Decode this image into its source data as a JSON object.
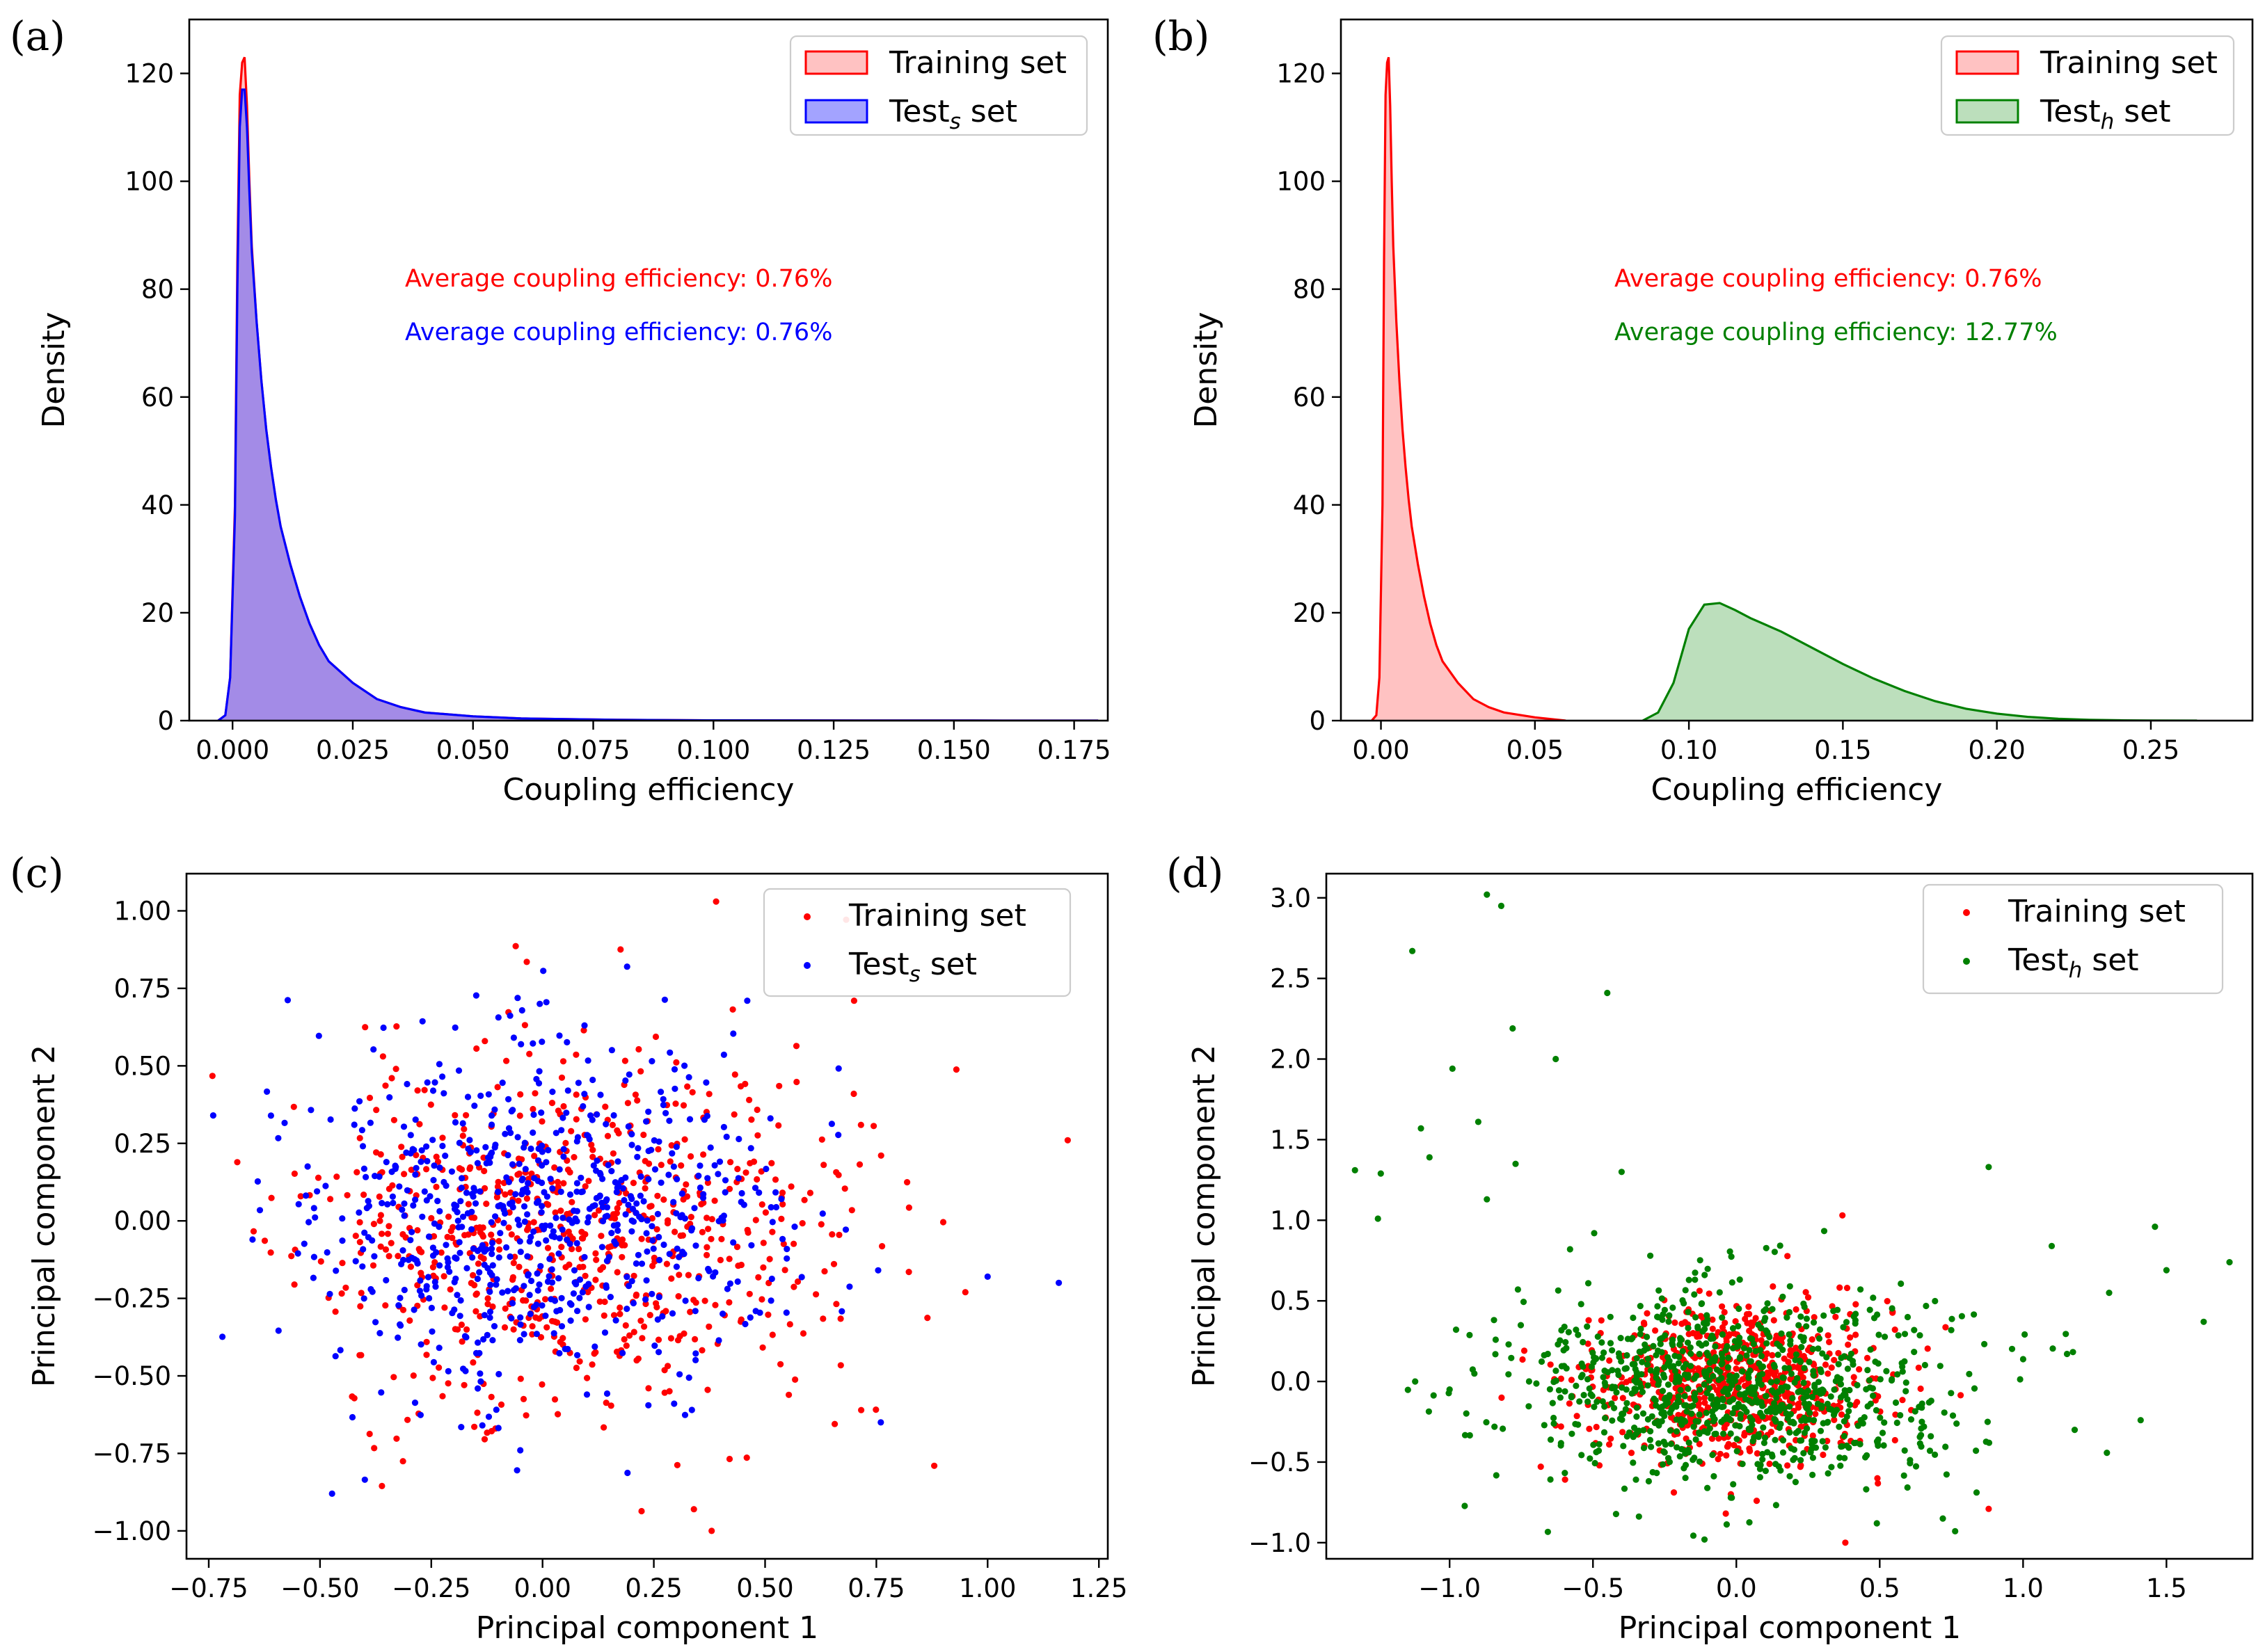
{
  "chart_data": [
    {
      "panel": "(a)",
      "type": "area",
      "xlabel": "Coupling efficiency",
      "ylabel": "Density",
      "xlim": [
        -0.009,
        0.182
      ],
      "ylim": [
        0,
        130
      ],
      "xticks": [
        0.0,
        0.025,
        0.05,
        0.075,
        0.1,
        0.125,
        0.15,
        0.175
      ],
      "xtick_labels": [
        "0.000",
        "0.025",
        "0.050",
        "0.075",
        "0.100",
        "0.125",
        "0.150",
        "0.175"
      ],
      "yticks": [
        0,
        20,
        40,
        60,
        80,
        100,
        120
      ],
      "ytick_labels": [
        "0",
        "20",
        "40",
        "60",
        "80",
        "100",
        "120"
      ],
      "legend_position": "upper-right",
      "series": [
        {
          "name": "Training set",
          "name_sub": "",
          "name_suffix": "",
          "color": "#ff0000",
          "fill": "#ff9999",
          "x": [
            -0.003,
            -0.0015,
            -0.0005,
            0.0005,
            0.001,
            0.0015,
            0.002,
            0.0025,
            0.003,
            0.0035,
            0.004,
            0.005,
            0.006,
            0.007,
            0.008,
            0.009,
            0.01,
            0.012,
            0.014,
            0.016,
            0.018,
            0.02,
            0.025,
            0.03,
            0.035,
            0.04,
            0.05,
            0.06,
            0.08,
            0.1,
            0.13,
            0.16,
            0.18
          ],
          "y": [
            0,
            1,
            8,
            40,
            85,
            116,
            122,
            123,
            114,
            100,
            88,
            74,
            63,
            54,
            47,
            41,
            36,
            29,
            23,
            18,
            14,
            11,
            7,
            4,
            2.5,
            1.5,
            0.8,
            0.4,
            0.15,
            0.05,
            0.02,
            0.01,
            0
          ]
        },
        {
          "name": "Test",
          "name_sub": "s",
          "name_suffix": " set",
          "color": "#0000ff",
          "fill": "#6666ff",
          "x": [
            -0.003,
            -0.0015,
            -0.0005,
            0.0005,
            0.001,
            0.0015,
            0.002,
            0.0025,
            0.003,
            0.0035,
            0.004,
            0.005,
            0.006,
            0.007,
            0.008,
            0.009,
            0.01,
            0.012,
            0.014,
            0.016,
            0.018,
            0.02,
            0.025,
            0.03,
            0.035,
            0.04,
            0.05,
            0.06,
            0.08,
            0.1,
            0.13,
            0.16,
            0.18
          ],
          "y": [
            0,
            1,
            8,
            38,
            80,
            110,
            117,
            117,
            110,
            98,
            87,
            74,
            63,
            54,
            47,
            41,
            36,
            29,
            23,
            18,
            14,
            11,
            7,
            4,
            2.5,
            1.5,
            0.8,
            0.4,
            0.15,
            0.05,
            0.02,
            0.01,
            0
          ]
        }
      ],
      "annotations": [
        {
          "text": "Average coupling efficiency: 0.76%",
          "color": "#ff0000"
        },
        {
          "text": "Average coupling efficiency: 0.76%",
          "color": "#0000ff"
        }
      ]
    },
    {
      "panel": "(b)",
      "type": "area",
      "xlabel": "Coupling efficiency",
      "ylabel": "Density",
      "xlim": [
        -0.013,
        0.283
      ],
      "ylim": [
        0,
        130
      ],
      "xticks": [
        0.0,
        0.05,
        0.1,
        0.15,
        0.2,
        0.25
      ],
      "xtick_labels": [
        "0.00",
        "0.05",
        "0.10",
        "0.15",
        "0.20",
        "0.25"
      ],
      "yticks": [
        0,
        20,
        40,
        60,
        80,
        100,
        120
      ],
      "ytick_labels": [
        "0",
        "20",
        "40",
        "60",
        "80",
        "100",
        "120"
      ],
      "legend_position": "upper-right",
      "series": [
        {
          "name": "Training set",
          "name_sub": "",
          "name_suffix": "",
          "color": "#ff0000",
          "fill": "#ff9999",
          "x": [
            -0.003,
            -0.0015,
            -0.0005,
            0.0005,
            0.001,
            0.0015,
            0.002,
            0.0025,
            0.003,
            0.0035,
            0.004,
            0.005,
            0.006,
            0.007,
            0.008,
            0.009,
            0.01,
            0.012,
            0.014,
            0.016,
            0.018,
            0.02,
            0.025,
            0.03,
            0.035,
            0.04,
            0.05,
            0.06
          ],
          "y": [
            0,
            1,
            8,
            40,
            85,
            116,
            122,
            123,
            114,
            100,
            88,
            74,
            63,
            54,
            47,
            41,
            36,
            29,
            23,
            18,
            14,
            11,
            7,
            4,
            2.5,
            1.5,
            0.6,
            0
          ]
        },
        {
          "name": "Test",
          "name_sub": "h",
          "name_suffix": " set",
          "color": "#008000",
          "fill": "#8fc98f",
          "x": [
            0.085,
            0.09,
            0.095,
            0.1,
            0.105,
            0.11,
            0.115,
            0.12,
            0.13,
            0.14,
            0.15,
            0.16,
            0.17,
            0.18,
            0.19,
            0.2,
            0.21,
            0.22,
            0.23,
            0.24,
            0.25,
            0.265
          ],
          "y": [
            0,
            1.5,
            7,
            17,
            21.5,
            21.8,
            20.5,
            19,
            16.5,
            13.5,
            10.5,
            7.8,
            5.5,
            3.6,
            2.2,
            1.3,
            0.7,
            0.35,
            0.15,
            0.06,
            0.02,
            0
          ]
        }
      ],
      "annotations": [
        {
          "text": "Average coupling efficiency: 0.76%",
          "color": "#ff0000"
        },
        {
          "text": "Average coupling efficiency: 12.77%",
          "color": "#008000"
        }
      ]
    },
    {
      "panel": "(c)",
      "type": "scatter",
      "xlabel": "Principal component 1",
      "ylabel": "Principal component 2",
      "xlim": [
        -0.8,
        1.27
      ],
      "ylim": [
        -1.09,
        1.12
      ],
      "xticks": [
        -0.75,
        -0.5,
        -0.25,
        0.0,
        0.25,
        0.5,
        0.75,
        1.0,
        1.25
      ],
      "xtick_labels": [
        "−0.75",
        "−0.50",
        "−0.25",
        "0.00",
        "0.25",
        "0.50",
        "0.75",
        "1.00",
        "1.25"
      ],
      "yticks": [
        -1.0,
        -0.75,
        -0.5,
        -0.25,
        0.0,
        0.25,
        0.5,
        0.75,
        1.0
      ],
      "ytick_labels": [
        "−1.00",
        "−0.75",
        "−0.50",
        "−0.25",
        "0.00",
        "0.25",
        "0.50",
        "0.75",
        "1.00"
      ],
      "legend_position": "upper-right",
      "series": [
        {
          "name": "Training set",
          "name_sub": "",
          "name_suffix": "",
          "color": "#ff0000",
          "cloud": {
            "n": 700,
            "mx": 0.06,
            "sx": 0.3,
            "my": -0.03,
            "sy": 0.29,
            "seed": 11
          },
          "points": [
            [
              0.39,
              1.03
            ],
            [
              0.7,
              0.71
            ],
            [
              1.18,
              0.26
            ],
            [
              0.88,
              -0.79
            ],
            [
              0.38,
              -1.0
            ],
            [
              0.34,
              -0.93
            ],
            [
              0.95,
              -0.23
            ]
          ]
        },
        {
          "name": "Test",
          "name_sub": "s",
          "name_suffix": " set",
          "color": "#0000ff",
          "cloud": {
            "n": 700,
            "mx": -0.01,
            "sx": 0.26,
            "my": 0.02,
            "sy": 0.27,
            "seed": 29
          },
          "points": [
            [
              -0.74,
              0.34
            ],
            [
              0.19,
              0.82
            ],
            [
              0.46,
              0.71
            ],
            [
              1.16,
              -0.2
            ],
            [
              1.0,
              -0.18
            ],
            [
              0.76,
              -0.65
            ],
            [
              -0.05,
              -0.74
            ]
          ]
        }
      ]
    },
    {
      "panel": "(d)",
      "type": "scatter",
      "xlabel": "Principal component 1",
      "ylabel": "Principal component 2",
      "xlim": [
        -1.43,
        1.8
      ],
      "ylim": [
        -1.1,
        3.15
      ],
      "xticks": [
        -1.0,
        -0.5,
        0.0,
        0.5,
        1.0,
        1.5
      ],
      "xtick_labels": [
        "−1.0",
        "−0.5",
        "0.0",
        "0.5",
        "1.0",
        "1.5"
      ],
      "yticks": [
        -1.0,
        -0.5,
        0.0,
        0.5,
        1.0,
        1.5,
        2.0,
        2.5,
        3.0
      ],
      "ytick_labels": [
        "−1.0",
        "−0.5",
        "0.0",
        "0.5",
        "1.0",
        "1.5",
        "2.0",
        "2.5",
        "3.0"
      ],
      "legend_position": "upper-right",
      "series": [
        {
          "name": "Training set",
          "name_sub": "",
          "name_suffix": "",
          "color": "#ff0000",
          "cloud": {
            "n": 700,
            "mx": 0.0,
            "sx": 0.24,
            "my": 0.0,
            "sy": 0.24,
            "seed": 53
          },
          "points": [
            [
              0.37,
              1.03
            ],
            [
              0.88,
              -0.79
            ],
            [
              0.38,
              -1.0
            ]
          ]
        },
        {
          "name": "Test",
          "name_sub": "h",
          "name_suffix": " set",
          "color": "#008000",
          "cloud": {
            "n": 900,
            "mx": 0.0,
            "sx": 0.38,
            "my": -0.05,
            "sy": 0.3,
            "seed": 71
          },
          "points": [
            [
              -0.87,
              3.02
            ],
            [
              -0.82,
              2.95
            ],
            [
              -1.13,
              2.67
            ],
            [
              -0.45,
              2.41
            ],
            [
              -0.78,
              2.19
            ],
            [
              -0.63,
              2.0
            ],
            [
              -0.99,
              1.94
            ],
            [
              -1.1,
              1.57
            ],
            [
              -0.9,
              1.61
            ],
            [
              -1.33,
              1.31
            ],
            [
              -1.24,
              1.29
            ],
            [
              -1.07,
              1.39
            ],
            [
              -0.77,
              1.35
            ],
            [
              -0.4,
              1.3
            ],
            [
              -1.25,
              1.01
            ],
            [
              -0.87,
              1.13
            ],
            [
              -0.58,
              0.82
            ],
            [
              -0.3,
              0.78
            ],
            [
              0.88,
              1.33
            ],
            [
              1.46,
              0.96
            ],
            [
              1.72,
              0.74
            ],
            [
              1.63,
              0.37
            ],
            [
              1.5,
              0.69
            ],
            [
              1.1,
              0.84
            ],
            [
              1.3,
              0.55
            ],
            [
              1.41,
              -0.24
            ],
            [
              1.18,
              -0.3
            ],
            [
              0.72,
              -0.85
            ],
            [
              0.49,
              -0.88
            ],
            [
              -1.0,
              -0.05
            ],
            [
              -1.12,
              0.0
            ]
          ]
        }
      ]
    }
  ]
}
